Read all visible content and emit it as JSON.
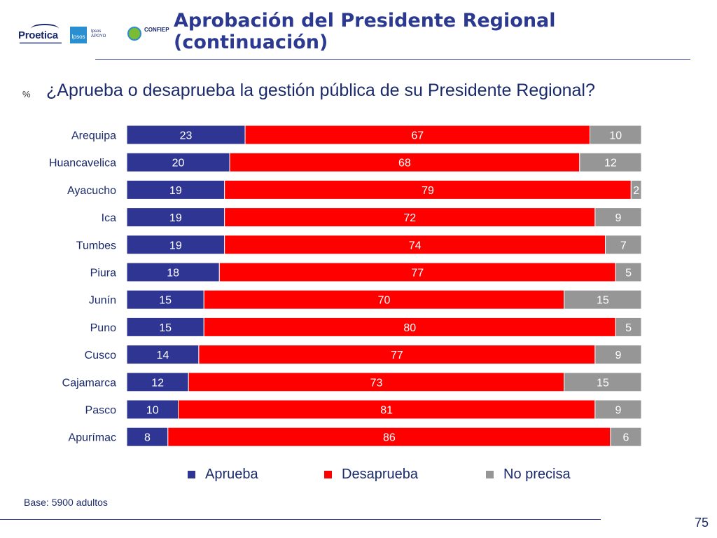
{
  "header": {
    "logos": {
      "proetica_label": "Proetica",
      "ipsos_label": "Ipsos",
      "apoyo_label": "Ipsos APOYO",
      "confiep_label": "CONFIEP"
    },
    "title_line1": "Aprobación del Presidente Regional",
    "title_line2": "(continuación)"
  },
  "question": {
    "unit": "%",
    "text": "¿Aprueba o desaprueba la gestión pública de su Presidente Regional?"
  },
  "colors": {
    "title": "#2b3990",
    "aprueba": "#2f3592",
    "desaprueba": "#ff0000",
    "no_precisa": "#969696",
    "text": "#1b2a6b"
  },
  "chart_data": {
    "type": "bar",
    "orientation": "horizontal",
    "stacked": true,
    "title": "¿Aprueba o desaprueba la gestión pública de su Presidente Regional?",
    "unit": "%",
    "categories": [
      "Arequipa",
      "Huancavelica",
      "Ayacucho",
      "Ica",
      "Tumbes",
      "Piura",
      "Junín",
      "Puno",
      "Cusco",
      "Cajamarca",
      "Pasco",
      "Apurímac"
    ],
    "series": [
      {
        "name": "Aprueba",
        "color": "#2f3592",
        "values": [
          23,
          20,
          19,
          19,
          19,
          18,
          15,
          15,
          14,
          12,
          10,
          8
        ]
      },
      {
        "name": "Desaprueba",
        "color": "#ff0000",
        "values": [
          67,
          68,
          79,
          72,
          74,
          77,
          70,
          80,
          77,
          73,
          81,
          86
        ]
      },
      {
        "name": "No precisa",
        "color": "#969696",
        "values": [
          10,
          12,
          2,
          9,
          7,
          5,
          15,
          5,
          9,
          15,
          9,
          6
        ]
      }
    ],
    "xlim": [
      0,
      100
    ],
    "legend_position": "bottom",
    "data_labels": true
  },
  "footer": {
    "base_note": "Base: 5900 adultos",
    "page_number": "75"
  }
}
